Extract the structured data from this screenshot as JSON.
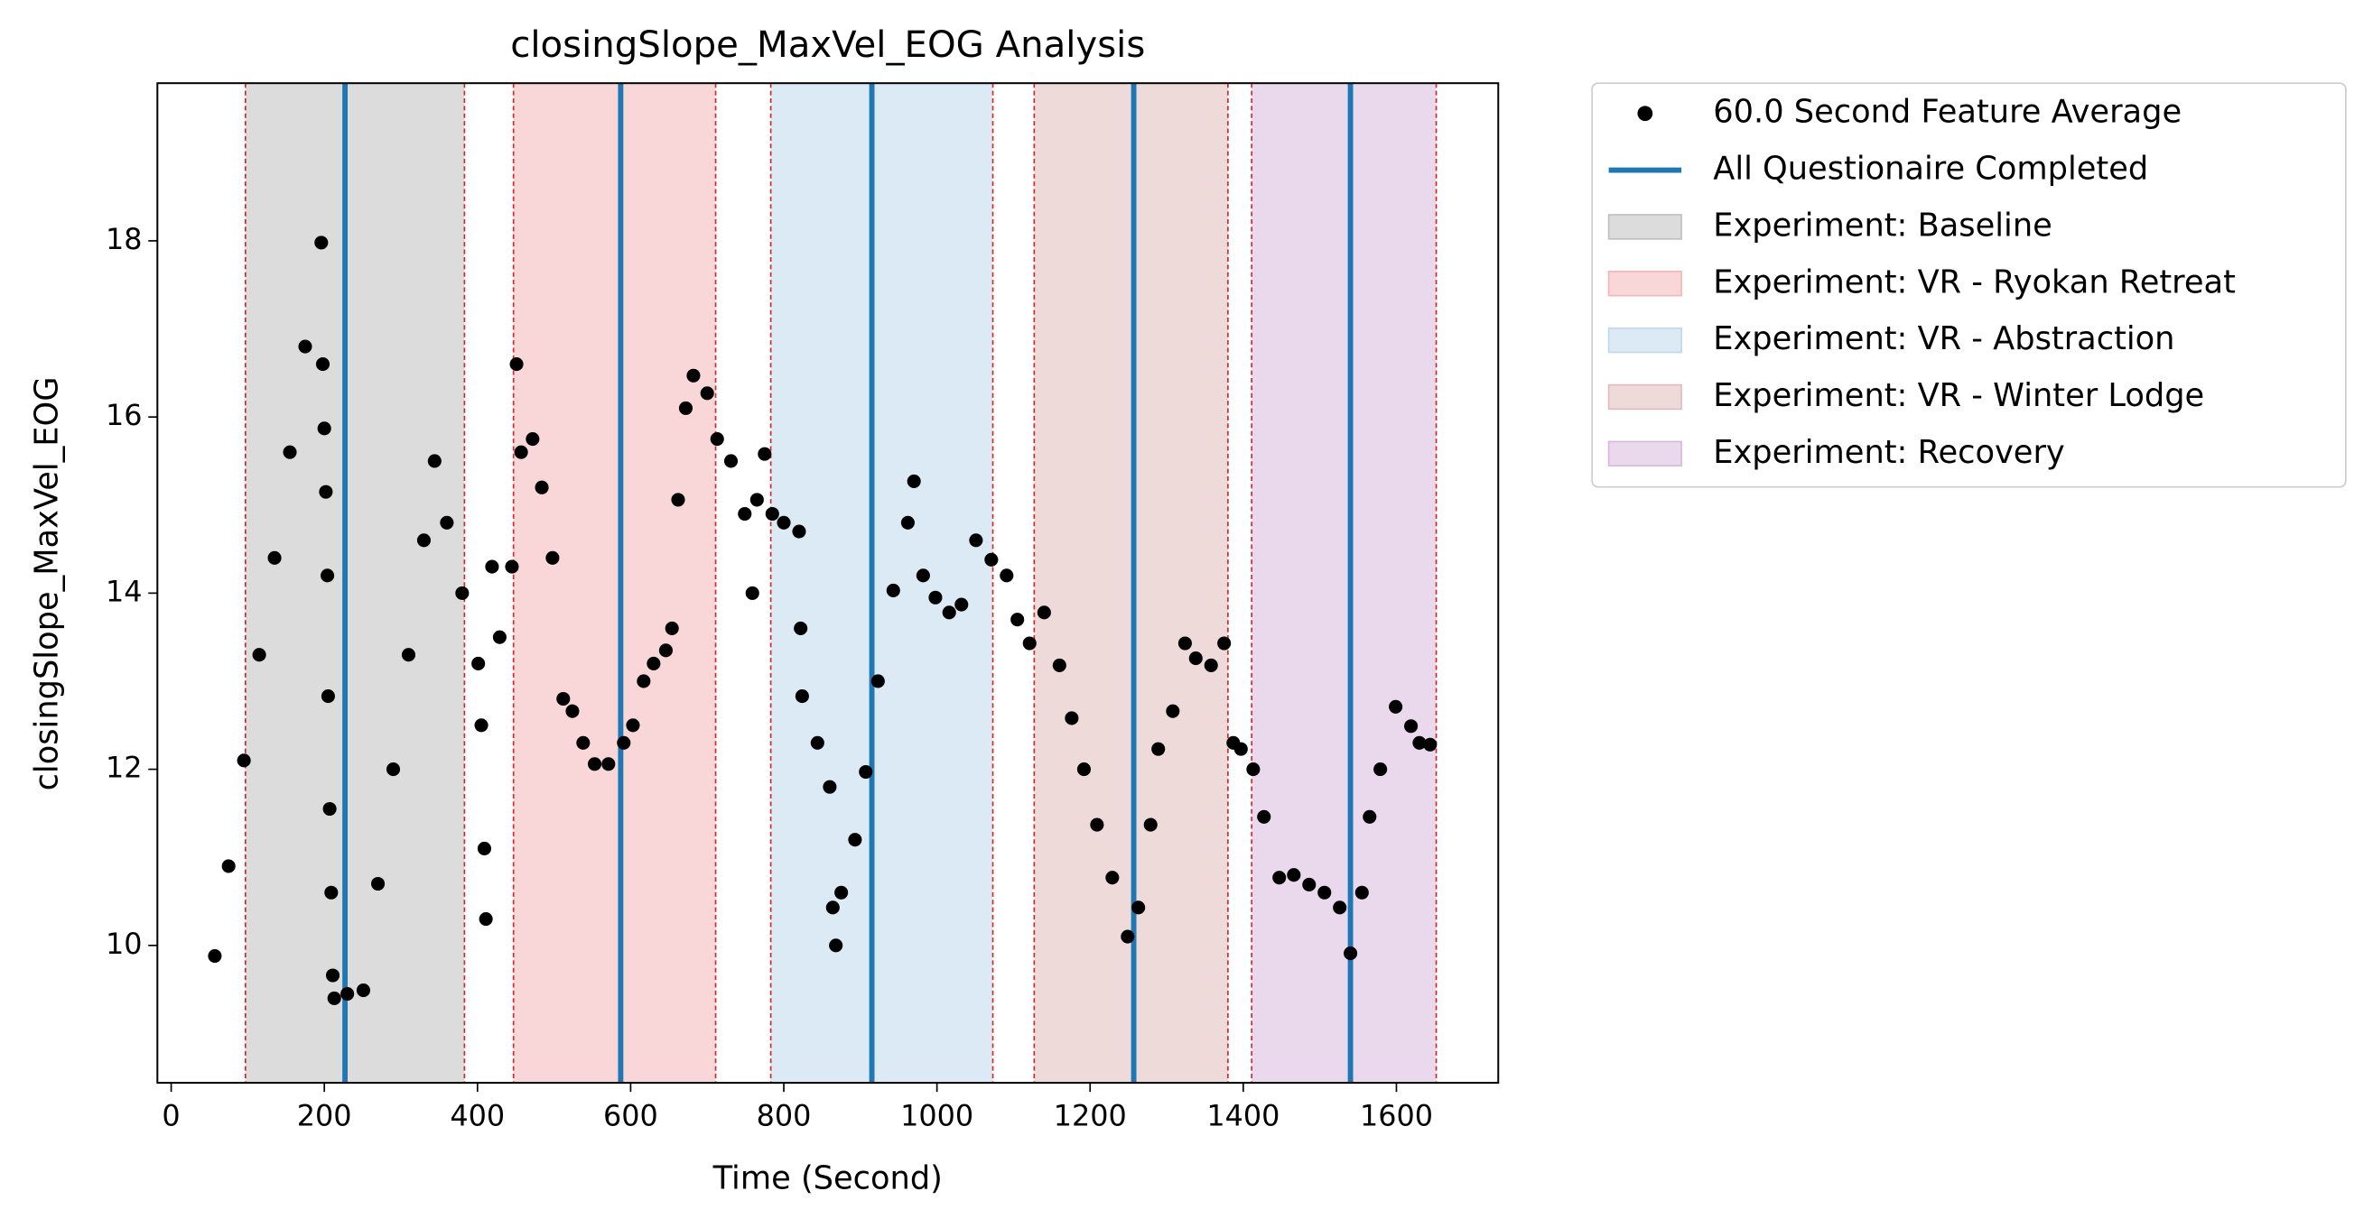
{
  "chart_data": {
    "type": "scatter",
    "title": "closingSlope_MaxVel_EOG Analysis",
    "x_label": "Time (Second)",
    "y_label": "closingSlope_MaxVel_EOG",
    "xlim": [
      -18,
      1733
    ],
    "ylim": [
      8.44,
      19.79
    ],
    "xticks": [
      0,
      200,
      400,
      600,
      800,
      1000,
      1200,
      1400,
      1600
    ],
    "yticks": [
      10,
      12,
      14,
      16,
      18
    ],
    "legend": "outside-upper-right",
    "spans": [
      {
        "name": "Experiment: Baseline",
        "color": "#bfbfbf",
        "x": [
          97,
          383
        ]
      },
      {
        "name": "Experiment: VR - Ryokan Retreat",
        "color": "#f4b6b8",
        "x": [
          447,
          711
        ]
      },
      {
        "name": "Experiment: VR - Abstraction",
        "color": "#c0d8ec",
        "x": [
          783,
          1073
        ]
      },
      {
        "name": "Experiment: VR - Winter Lodge",
        "color": "#e2bcbc",
        "x": [
          1127,
          1380
        ]
      },
      {
        "name": "Experiment: Recovery",
        "color": "#d9b8dd",
        "x": [
          1411,
          1652
        ]
      }
    ],
    "vlines": {
      "name": "All Questionaire Completed",
      "color": "#1f77b4",
      "x": [
        227,
        587,
        915,
        1257,
        1540
      ]
    },
    "series": [
      {
        "name": "60.0 Second Feature Average",
        "color": "#000000",
        "x": [
          57,
          75,
          95,
          115,
          135,
          155,
          175,
          196,
          198,
          200,
          202,
          204,
          205,
          207,
          209,
          211,
          213,
          230,
          251,
          270,
          290,
          310,
          330,
          344,
          360,
          380,
          401,
          405,
          409,
          411,
          419,
          429,
          445,
          451,
          457,
          472,
          484,
          498,
          512,
          524,
          538,
          553,
          571,
          591,
          603,
          617,
          630,
          646,
          654,
          662,
          672,
          682,
          700,
          713,
          731,
          749,
          759,
          765,
          775,
          785,
          800,
          820,
          822,
          824,
          844,
          860,
          864,
          868,
          875,
          893,
          907,
          923,
          943,
          962,
          970,
          982,
          998,
          1016,
          1032,
          1051,
          1071,
          1091,
          1105,
          1121,
          1140,
          1160,
          1176,
          1192,
          1209,
          1229,
          1249,
          1263,
          1279,
          1289,
          1308,
          1324,
          1338,
          1358,
          1375,
          1387,
          1397,
          1413,
          1427,
          1447,
          1466,
          1486,
          1506,
          1526,
          1540,
          1555,
          1565,
          1579,
          1599,
          1619,
          1630,
          1644
        ],
        "values": [
          9.88,
          10.9,
          12.1,
          13.3,
          14.4,
          15.6,
          16.8,
          17.98,
          16.6,
          15.87,
          15.15,
          14.2,
          12.83,
          11.55,
          10.6,
          9.66,
          9.4,
          9.45,
          9.49,
          10.7,
          12.0,
          13.3,
          14.6,
          15.5,
          14.8,
          14.0,
          13.2,
          12.5,
          11.1,
          10.3,
          14.3,
          13.5,
          14.3,
          16.6,
          15.6,
          15.75,
          15.2,
          14.4,
          12.8,
          12.66,
          12.3,
          12.06,
          12.06,
          12.3,
          12.5,
          13.0,
          13.2,
          13.35,
          13.6,
          15.06,
          16.1,
          16.47,
          16.27,
          15.75,
          15.5,
          14.9,
          14.0,
          15.06,
          15.58,
          14.9,
          14.8,
          14.7,
          13.6,
          12.83,
          12.3,
          11.8,
          10.43,
          10.0,
          10.6,
          11.2,
          11.97,
          13.0,
          14.03,
          14.8,
          15.27,
          14.2,
          13.95,
          13.78,
          13.87,
          14.6,
          14.38,
          14.2,
          13.7,
          13.43,
          13.78,
          13.18,
          12.58,
          12.0,
          11.37,
          10.77,
          10.1,
          10.43,
          11.37,
          12.23,
          12.66,
          13.43,
          13.26,
          13.18,
          13.43,
          12.3,
          12.23,
          12.0,
          11.46,
          10.77,
          10.8,
          10.69,
          10.6,
          10.43,
          9.91,
          10.6,
          11.46,
          12.0,
          12.71,
          12.49,
          12.3,
          12.28
        ]
      }
    ]
  }
}
